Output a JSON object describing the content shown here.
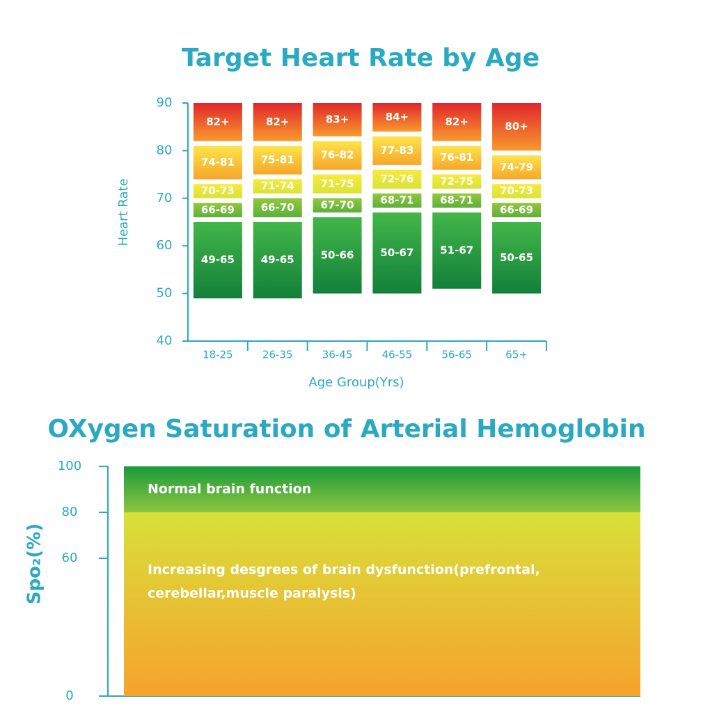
{
  "chart_data": [
    {
      "type": "range_bar",
      "title": "Target Heart Rate by Age",
      "xlabel": "Age Group(Yrs)",
      "ylabel": "Heart Rate",
      "categories": [
        "18-25",
        "26-35",
        "36-45",
        "46-55",
        "56-65",
        "65+"
      ],
      "ylim": [
        40,
        90
      ],
      "yticks": [
        40,
        50,
        60,
        70,
        80,
        90
      ],
      "segments": [
        {
          "colors": [
            "#43b649",
            "#12803a"
          ],
          "low": [
            49,
            49,
            50,
            50,
            51,
            50
          ],
          "high": [
            65,
            65,
            66,
            67,
            67,
            65
          ],
          "value_labels": [
            "49-65",
            "49-65",
            "50-66",
            "50-67",
            "51-67",
            "50-65"
          ]
        },
        {
          "colors": [
            "#92c83e",
            "#5daf3a"
          ],
          "low": [
            66,
            66,
            67,
            68,
            68,
            66
          ],
          "high": [
            69,
            70,
            70,
            71,
            71,
            69
          ],
          "value_labels": [
            "66-69",
            "66-70",
            "67-70",
            "68-71",
            "68-71",
            "66-69"
          ]
        },
        {
          "colors": [
            "#f6eb3b",
            "#d9e23a"
          ],
          "low": [
            70,
            71,
            71,
            72,
            72,
            70
          ],
          "high": [
            73,
            74,
            75,
            76,
            75,
            73
          ],
          "value_labels": [
            "70-73",
            "71-74",
            "71-75",
            "72-76",
            "72-75",
            "70-73"
          ]
        },
        {
          "colors": [
            "#fde44a",
            "#f6a62a"
          ],
          "low": [
            74,
            75,
            76,
            77,
            76,
            74
          ],
          "high": [
            81,
            81,
            82,
            83,
            81,
            79
          ],
          "value_labels": [
            "74-81",
            "75-81",
            "76-82",
            "77-83",
            "76-81",
            "74-79"
          ]
        },
        {
          "colors": [
            "#e1262b",
            "#f79a2c"
          ],
          "low": [
            82,
            82,
            83,
            84,
            82,
            80
          ],
          "high": [
            null,
            null,
            null,
            null,
            null,
            null
          ],
          "value_labels": [
            "82+",
            "82+",
            "83+",
            "84+",
            "82+",
            "80+"
          ]
        }
      ]
    },
    {
      "type": "zones",
      "title": "OXygen Saturation of Arterial Hemoglobin",
      "ylabel": "Spo₂(%)",
      "ylim": [
        0,
        100
      ],
      "yticks": [
        0,
        60,
        80,
        100
      ],
      "zones": [
        {
          "low": 80,
          "high": 100,
          "colors": [
            "#1a9a3b",
            "#8cc63f"
          ],
          "label_lines": [
            "Normal brain function"
          ]
        },
        {
          "low": 0,
          "high": 80,
          "colors": [
            "#d8e03a",
            "#f6a22c"
          ],
          "label_lines": [
            "Increasing desgrees of brain dysfunction(prefrontal,",
            "cerebellar,muscle paralysis)"
          ]
        }
      ]
    }
  ]
}
